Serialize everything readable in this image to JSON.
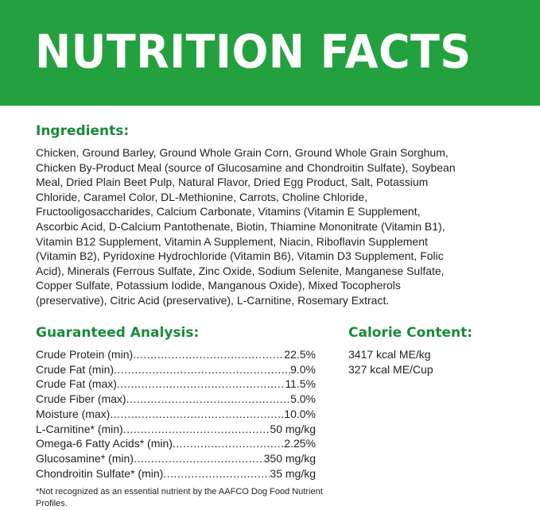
{
  "title": "NUTRITION FACTS",
  "colors": {
    "banner": "#24a13f",
    "heading": "#1b8a3c"
  },
  "ingredients": {
    "heading": "Ingredients:",
    "lines": [
      "Chicken, Ground Barley, Ground Whole Grain Corn, Ground Whole Grain Sorghum,",
      "Chicken By-Product Meal (source of Glucosamine and Chondroitin Sulfate), Soybean",
      "Meal, Dried Plain Beet Pulp, Natural Flavor, Dried Egg Product, Salt, Potassium",
      "Chloride, Caramel Color, DL-Methionine, Carrots, Choline Chloride,",
      "Fructooligosaccharides, Calcium Carbonate, Vitamins (Vitamin E Supplement,",
      "Ascorbic Acid, D-Calcium Pantothenate, Biotin, Thiamine Mononitrate (Vitamin B1),",
      "Vitamin B12 Supplement, Vitamin A Supplement, Niacin, Riboflavin Supplement",
      "(Vitamin B2), Pyridoxine Hydrochloride (Vitamin B6), Vitamin D3 Supplement, Folic",
      "Acid), Minerals (Ferrous Sulfate, Zinc Oxide, Sodium Selenite, Manganese Sulfate,",
      "Copper Sulfate, Potassium Iodide, Manganous Oxide), Mixed Tocopherols",
      "(preservative), Citric Acid (preservative), L-Carnitine, Rosemary Extract."
    ]
  },
  "analysis": {
    "heading": "Guaranteed Analysis:",
    "rows": [
      {
        "label": "Crude Protein (min)",
        "value": "22.5%"
      },
      {
        "label": "Crude Fat (min)",
        "value": "9.0%"
      },
      {
        "label": "Crude Fat (max)",
        "value": "11.5%"
      },
      {
        "label": "Crude Fiber (max)",
        "value": "5.0%"
      },
      {
        "label": "Moisture (max)",
        "value": "10.0%"
      },
      {
        "label": "L-Carnitine* (min)",
        "value": "50 mg/kg"
      },
      {
        "label": "Omega-6 Fatty Acids* (min)",
        "value": "2.25%"
      },
      {
        "label": "Glucosamine* (min)",
        "value": "350 mg/kg"
      },
      {
        "label": "Chondroitin Sulfate* (min)",
        "value": "35 mg/kg"
      }
    ],
    "footnote": "*Not recognized as an essential nutrient by the AAFCO Dog Food Nutrient Profiles."
  },
  "calorie": {
    "heading": "Calorie Content:",
    "lines": [
      "3417 kcal ME/kg",
      "327 kcal ME/Cup"
    ]
  }
}
